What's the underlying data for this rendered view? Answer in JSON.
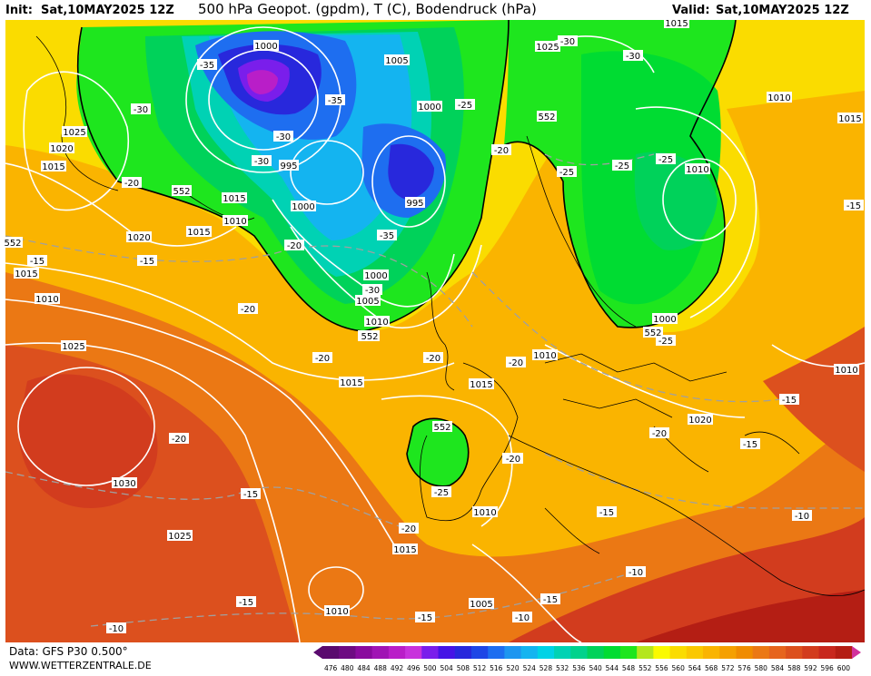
{
  "header": {
    "init_prefix": "Init:",
    "init_value": "Sat,10MAY2025 12Z",
    "title": "500 hPa Geopot. (gpdm), T (C), Bodendruck (hPa)",
    "valid_prefix": "Valid:",
    "valid_value": "Sat,10MAY2025 12Z"
  },
  "footer": {
    "data_source": "Data: GFS P30 0.500°",
    "website": "WWW.WETTERZENTRALE.DE"
  },
  "color_scale": {
    "values": [
      "476",
      "480",
      "484",
      "488",
      "492",
      "496",
      "500",
      "504",
      "508",
      "512",
      "516",
      "520",
      "524",
      "528",
      "532",
      "536",
      "540",
      "544",
      "548",
      "552",
      "556",
      "560",
      "564",
      "568",
      "572",
      "576",
      "580",
      "584",
      "588",
      "592",
      "596",
      "600"
    ],
    "colors": [
      "#5a0a6e",
      "#6e0a82",
      "#8a0a9e",
      "#a014b4",
      "#b91ec8",
      "#c832dc",
      "#7a1eeb",
      "#4614e6",
      "#2828dc",
      "#1e46e6",
      "#1e6ef0",
      "#1e96f0",
      "#14b4f0",
      "#00d2e6",
      "#00d2b4",
      "#00d28c",
      "#00d25a",
      "#00dc32",
      "#1ee61e",
      "#b4e61e",
      "#fafa00",
      "#fadc00",
      "#fac800",
      "#fab400",
      "#f5a000",
      "#f08c00",
      "#eb7814",
      "#e6641e",
      "#dc501e",
      "#d23c1e",
      "#c8281e",
      "#b41e14"
    ]
  },
  "pressure_labels": [
    "1025",
    "1000",
    "1005",
    "1015",
    "1025",
    "1030",
    "1020",
    "1015",
    "1000",
    "1010",
    "1010",
    "995",
    "1000",
    "1010",
    "1015",
    "1020",
    "1015",
    "1010",
    "1015",
    "1010",
    "1015",
    "995",
    "1000",
    "1005",
    "1010",
    "1025",
    "1030",
    "1025",
    "1015",
    "1010",
    "1010",
    "1020",
    "1015",
    "1010",
    "1005",
    "1000",
    "1015"
  ],
  "temperature_labels": [
    "-35",
    "-35",
    "-30",
    "-25",
    "-30",
    "-30",
    "-20",
    "-20",
    "-25",
    "-20",
    "-25",
    "-15",
    "-20",
    "-15",
    "-20",
    "-25",
    "-25",
    "-20",
    "-20",
    "-15",
    "-20",
    "-35",
    "-35",
    "-30",
    "-30",
    "-20",
    "-20",
    "-20",
    "-25",
    "-20",
    "-15",
    "-10",
    "-15",
    "-15",
    "-10",
    "-15",
    "-10",
    "-10",
    "-10",
    "-15",
    "-25",
    "-15",
    "-10",
    "-15",
    "-30"
  ],
  "geopotential_labels": [
    "552",
    "552",
    "552",
    "552",
    "552",
    "552",
    "552"
  ]
}
